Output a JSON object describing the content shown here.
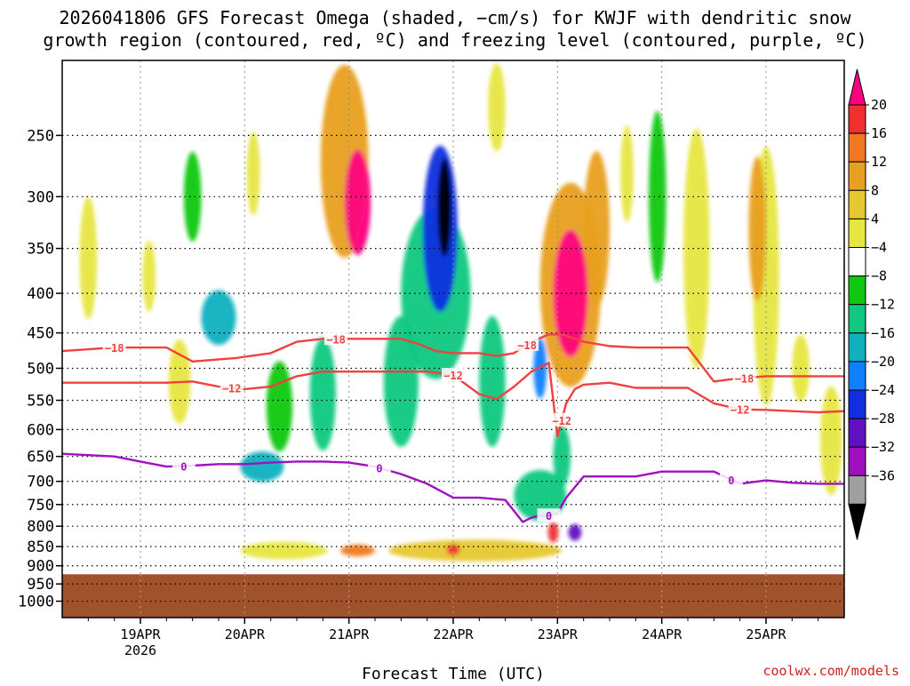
{
  "title_line1": "2026041806 GFS Forecast Omega (shaded, −cm/s) for KWJF with dendritic snow",
  "title_line2": "growth region (contoured, red, ºC) and freezing level (contoured, purple, ºC)",
  "credit": "coolwx.com/models",
  "chart_data": {
    "type": "time-height cross section",
    "title": "2026041806 GFS Forecast Omega (shaded, −cm/s) for KWJF",
    "xlabel": "Forecast Time (UTC)",
    "ylabel": "",
    "x_ticks": [
      {
        "t": 18.0,
        "label": "19APR",
        "sub": "2026"
      },
      {
        "t": 42.0,
        "label": "20APR",
        "sub": ""
      },
      {
        "t": 66.0,
        "label": "21APR",
        "sub": ""
      },
      {
        "t": 90.0,
        "label": "22APR",
        "sub": ""
      },
      {
        "t": 114.0,
        "label": "23APR",
        "sub": ""
      },
      {
        "t": 138.0,
        "label": "24APR",
        "sub": ""
      },
      {
        "t": 162.0,
        "label": "25APR",
        "sub": ""
      }
    ],
    "x_range_hours": [
      0,
      180
    ],
    "y_levels_hpa": [
      250,
      300,
      350,
      400,
      450,
      500,
      550,
      600,
      650,
      700,
      750,
      800,
      850,
      900,
      950,
      1000
    ],
    "y_range_hpa": [
      200,
      1050
    ],
    "surface_pressure_hpa": 923,
    "colorbar": {
      "labels": [
        "20",
        "16",
        "12",
        "8",
        "4",
        "−4",
        "−8",
        "−12",
        "−16",
        "−20",
        "−24",
        "−28",
        "−32",
        "−36"
      ],
      "colors": [
        "#ff0080",
        "#f03030",
        "#f07820",
        "#e8a020",
        "#e6c830",
        "#e6e640",
        "#ffffff",
        "#10c810",
        "#10c880",
        "#10b0c0",
        "#1080ff",
        "#1030e0",
        "#6010c0",
        "#a010c0",
        "#a0a0a0",
        "#000000"
      ]
    },
    "omega_features": [
      {
        "t": 68,
        "p": 305,
        "dt": 3.0,
        "dp": 95,
        "v": 20
      },
      {
        "t": 65,
        "p": 270,
        "dt": 5.5,
        "dp": 170,
        "v": 9
      },
      {
        "t": 88,
        "p": 310,
        "dt": 1.6,
        "dp": 90,
        "v": -38
      },
      {
        "t": 87,
        "p": 330,
        "dt": 4.0,
        "dp": 160,
        "v": -22
      },
      {
        "t": 86,
        "p": 400,
        "dt": 8.0,
        "dp": 200,
        "v": -10
      },
      {
        "t": 117,
        "p": 400,
        "dt": 4.0,
        "dp": 150,
        "v": 20
      },
      {
        "t": 117,
        "p": 390,
        "dt": 7.0,
        "dp": 230,
        "v": 10
      },
      {
        "t": 123,
        "p": 330,
        "dt": 3.0,
        "dp": 150,
        "v": 8
      },
      {
        "t": 115,
        "p": 650,
        "dt": 2.0,
        "dp": 120,
        "v": -10
      },
      {
        "t": 110,
        "p": 500,
        "dt": 1.5,
        "dp": 90,
        "v": -16
      },
      {
        "t": 110,
        "p": 730,
        "dt": 6.0,
        "dp": 110,
        "v": -9
      },
      {
        "t": 46,
        "p": 670,
        "dt": 5.0,
        "dp": 60,
        "v": -14
      },
      {
        "t": 36,
        "p": 430,
        "dt": 4.0,
        "dp": 70,
        "v": -12
      },
      {
        "t": 50,
        "p": 560,
        "dt": 3.0,
        "dp": 150,
        "v": -7
      },
      {
        "t": 60,
        "p": 540,
        "dt": 3.0,
        "dp": 180,
        "v": -8
      },
      {
        "t": 78,
        "p": 520,
        "dt": 4.0,
        "dp": 200,
        "v": -9
      },
      {
        "t": 99,
        "p": 520,
        "dt": 3.0,
        "dp": 200,
        "v": -8
      },
      {
        "t": 118,
        "p": 815,
        "dt": 1.5,
        "dp": 40,
        "v": -24
      },
      {
        "t": 95,
        "p": 860,
        "dt": 20.0,
        "dp": 55,
        "v": 7
      },
      {
        "t": 68,
        "p": 860,
        "dt": 4.0,
        "dp": 30,
        "v": 15
      },
      {
        "t": 90,
        "p": 858,
        "dt": 1.5,
        "dp": 28,
        "v": 16
      },
      {
        "t": 51,
        "p": 860,
        "dt": 10.0,
        "dp": 45,
        "v": 5
      },
      {
        "t": 113,
        "p": 815,
        "dt": 1.2,
        "dp": 50,
        "v": 16
      },
      {
        "t": 160,
        "p": 330,
        "dt": 2.0,
        "dp": 140,
        "v": 8
      },
      {
        "t": 162,
        "p": 380,
        "dt": 3.0,
        "dp": 280,
        "v": 5
      },
      {
        "t": 146,
        "p": 350,
        "dt": 3.0,
        "dp": 240,
        "v": 4.5
      },
      {
        "t": 30,
        "p": 300,
        "dt": 2.0,
        "dp": 80,
        "v": -7
      },
      {
        "t": 137,
        "p": 300,
        "dt": 2.0,
        "dp": 150,
        "v": -7
      },
      {
        "t": 27,
        "p": 520,
        "dt": 2.5,
        "dp": 130,
        "v": 4.5
      },
      {
        "t": 20,
        "p": 380,
        "dt": 1.5,
        "dp": 80,
        "v": 4.5
      },
      {
        "t": 44,
        "p": 280,
        "dt": 1.5,
        "dp": 70,
        "v": 5
      },
      {
        "t": 177,
        "p": 620,
        "dt": 2.5,
        "dp": 200,
        "v": 4.5
      },
      {
        "t": 6,
        "p": 360,
        "dt": 2.0,
        "dp": 130,
        "v": 4.5
      },
      {
        "t": 130,
        "p": 280,
        "dt": 1.5,
        "dp": 80,
        "v": 4.5
      },
      {
        "t": 170,
        "p": 500,
        "dt": 2.0,
        "dp": 100,
        "v": 5
      },
      {
        "t": 100,
        "p": 230,
        "dt": 2.0,
        "dp": 60,
        "v": 5
      }
    ],
    "isotherms": [
      {
        "label": "−18",
        "color": "#f04040",
        "t": [
          0,
          12,
          24,
          30,
          40,
          48,
          54,
          60,
          66,
          72,
          78,
          82,
          86,
          90,
          96,
          100,
          104,
          108,
          112,
          115,
          120,
          126,
          132,
          138,
          144,
          150,
          156,
          162,
          168,
          174,
          180
        ],
        "p": [
          475,
          470,
          470,
          490,
          485,
          478,
          462,
          458,
          458,
          458,
          458,
          465,
          475,
          478,
          478,
          482,
          478,
          462,
          452,
          452,
          462,
          468,
          470,
          470,
          470,
          520,
          515,
          512,
          512,
          512,
          512
        ],
        "labels_at": [
          12,
          63,
          107,
          157
        ]
      },
      {
        "label": "−12",
        "color": "#f04040",
        "t": [
          0,
          12,
          24,
          30,
          36,
          42,
          48,
          54,
          60,
          66,
          72,
          78,
          84,
          90,
          96,
          100,
          104,
          108,
          112,
          114,
          116,
          118,
          120,
          126,
          132,
          138,
          144,
          150,
          156,
          162,
          168,
          174,
          180
        ],
        "p": [
          522,
          522,
          522,
          520,
          528,
          532,
          528,
          512,
          505,
          505,
          505,
          505,
          505,
          510,
          540,
          548,
          528,
          505,
          492,
          612,
          555,
          532,
          525,
          522,
          530,
          530,
          530,
          555,
          565,
          566,
          568,
          570,
          568
        ],
        "labels_at": [
          39,
          90,
          115,
          156
        ]
      },
      {
        "label": "0",
        "color": "#a010c0",
        "t": [
          0,
          12,
          18,
          24,
          30,
          36,
          42,
          48,
          54,
          60,
          66,
          72,
          78,
          84,
          90,
          96,
          102,
          106,
          108,
          110,
          112,
          114,
          116,
          120,
          126,
          132,
          138,
          144,
          150,
          156,
          162,
          168,
          174,
          180
        ],
        "p": [
          645,
          650,
          660,
          670,
          668,
          665,
          665,
          662,
          660,
          660,
          662,
          670,
          685,
          705,
          735,
          735,
          740,
          790,
          780,
          775,
          775,
          770,
          735,
          690,
          690,
          690,
          680,
          680,
          680,
          705,
          698,
          703,
          705,
          705
        ],
        "labels_at": [
          28,
          73,
          112,
          154
        ]
      }
    ]
  }
}
